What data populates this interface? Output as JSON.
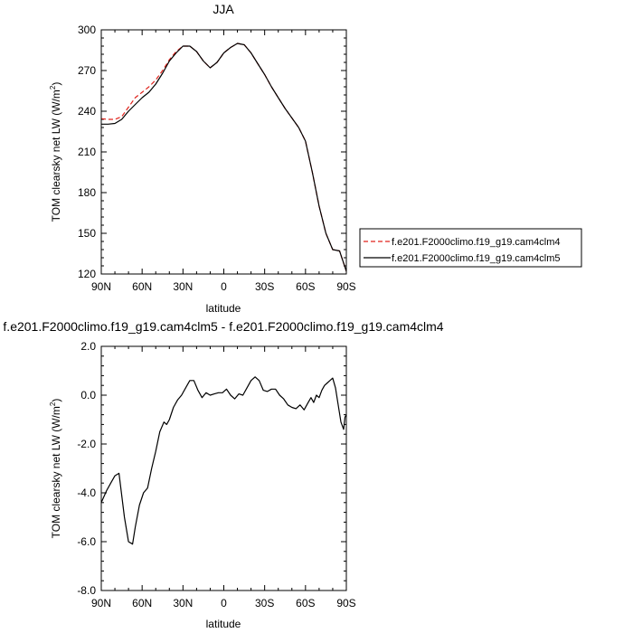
{
  "chart_data": [
    {
      "type": "line",
      "title": "JJA",
      "xlabel": "latitude",
      "ylabel": "TOM clearsky net LW (W/m",
      "ylabel_sup": "2",
      "ylabel_end": ")",
      "xlim": [
        90,
        -90
      ],
      "ylim": [
        120,
        300
      ],
      "xticks": [
        90,
        60,
        30,
        0,
        -30,
        -60,
        -90
      ],
      "xtick_labels": [
        "90N",
        "60N",
        "30N",
        "0",
        "30S",
        "60S",
        "90S"
      ],
      "yticks": [
        120,
        150,
        180,
        210,
        240,
        270,
        300
      ],
      "ytick_labels": [
        "120",
        "150",
        "180",
        "210",
        "240",
        "270",
        "300"
      ],
      "grid": false,
      "legend_position": "right",
      "series": [
        {
          "name": "f.e201.F2000climo.f19_g19.cam4clm4",
          "color": "#e0231c",
          "dash": true,
          "x": [
            90,
            85,
            80,
            75,
            70,
            65,
            60,
            55,
            50,
            45,
            40,
            35,
            30,
            25,
            20,
            15,
            10,
            5,
            0,
            -5,
            -10,
            -15,
            -20,
            -25,
            -30,
            -35,
            -40,
            -45,
            -50,
            -55,
            -60,
            -65,
            -70,
            -75,
            -80,
            -85,
            -90
          ],
          "y": [
            234.5,
            234,
            234,
            236,
            243,
            250,
            254,
            258,
            263,
            270,
            278,
            284,
            288,
            288,
            284,
            277,
            272,
            276,
            283,
            287,
            290,
            289,
            283,
            275,
            267,
            258,
            250,
            242,
            235,
            228,
            218,
            195,
            170,
            150,
            138,
            137,
            122
          ]
        },
        {
          "name": "f.e201.F2000climo.f19_g19.cam4clm5",
          "color": "#000000",
          "dash": false,
          "x": [
            90,
            85,
            80,
            75,
            70,
            65,
            60,
            55,
            50,
            45,
            40,
            35,
            30,
            25,
            20,
            15,
            10,
            5,
            0,
            -5,
            -10,
            -15,
            -20,
            -25,
            -30,
            -35,
            -40,
            -45,
            -50,
            -55,
            -60,
            -65,
            -70,
            -75,
            -80,
            -85,
            -90
          ],
          "y": [
            230.5,
            230.5,
            231,
            234,
            240,
            245,
            250,
            254,
            260,
            268,
            277,
            283,
            288,
            288,
            284,
            277,
            272,
            276,
            283,
            287,
            290,
            289,
            283,
            275,
            267,
            258,
            250,
            242,
            235,
            228,
            218,
            195,
            170,
            150,
            138,
            137,
            122
          ]
        }
      ]
    },
    {
      "type": "line",
      "title": "f.e201.F2000climo.f19_g19.cam4clm5 - f.e201.F2000climo.f19_g19.cam4clm4",
      "xlabel": "latitude",
      "ylabel": "TOM clearsky net LW (W/m",
      "ylabel_sup": "2",
      "ylabel_end": ")",
      "xlim": [
        90,
        -90
      ],
      "ylim": [
        -8,
        2
      ],
      "xticks": [
        90,
        60,
        30,
        0,
        -30,
        -60,
        -90
      ],
      "xtick_labels": [
        "90N",
        "60N",
        "30N",
        "0",
        "30S",
        "60S",
        "90S"
      ],
      "yticks": [
        -8,
        -6,
        -4,
        -2,
        0,
        2
      ],
      "ytick_labels": [
        "-8.0",
        "-6.0",
        "-4.0",
        "-2.0",
        "0.0",
        "2.0"
      ],
      "grid": false,
      "series": [
        {
          "color": "#000000",
          "x": [
            90,
            86,
            83,
            80,
            77,
            73,
            70,
            67,
            65,
            62,
            59,
            56,
            53,
            50,
            47,
            44,
            42,
            40,
            37,
            34,
            31,
            28,
            25,
            22,
            19,
            16,
            13,
            10,
            7,
            4,
            1,
            -2,
            -5,
            -8,
            -11,
            -14,
            -17,
            -20,
            -23,
            -26,
            -29,
            -32,
            -35,
            -38,
            -41,
            -44,
            -47,
            -50,
            -53,
            -56,
            -59,
            -62,
            -64,
            -66,
            -68,
            -70,
            -72,
            -74,
            -76,
            -78,
            -80,
            -82,
            -84,
            -86,
            -88,
            -89,
            -90
          ],
          "y": [
            -4.4,
            -3.9,
            -3.6,
            -3.3,
            -3.2,
            -5.0,
            -6.0,
            -6.1,
            -5.4,
            -4.5,
            -4.0,
            -3.8,
            -3.0,
            -2.3,
            -1.5,
            -1.1,
            -1.2,
            -1.0,
            -0.5,
            -0.2,
            0.0,
            0.3,
            0.6,
            0.6,
            0.2,
            -0.1,
            0.1,
            0.0,
            0.05,
            0.1,
            0.1,
            0.25,
            0.0,
            -0.15,
            0.05,
            0.0,
            0.3,
            0.6,
            0.75,
            0.6,
            0.2,
            0.15,
            0.25,
            0.25,
            0.0,
            -0.15,
            -0.4,
            -0.5,
            -0.55,
            -0.4,
            -0.6,
            -0.3,
            -0.1,
            -0.3,
            0.0,
            -0.1,
            0.2,
            0.4,
            0.5,
            0.6,
            0.7,
            0.3,
            -0.4,
            -1.1,
            -1.4,
            -0.9,
            -0.8
          ]
        }
      ]
    }
  ]
}
